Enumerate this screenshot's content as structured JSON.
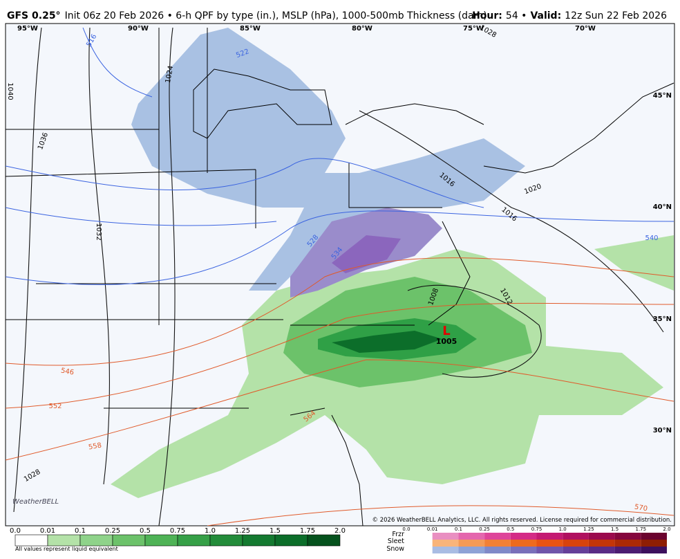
{
  "header": {
    "model": "GFS 0.25°",
    "description": "Init 06z 20 Feb 2026 • 6-h QPF by type (in.), MSLP (hPa), 1000-500mb Thickness (dam)",
    "hour_label": "Hour:",
    "hour": "54 •",
    "valid_label": "Valid:",
    "valid": "12z Sun 22 Feb 2026"
  },
  "map": {
    "longitude_labels": [
      "95°W",
      "90°W",
      "85°W",
      "80°W",
      "75°W",
      "70°W"
    ],
    "latitude_labels": [
      "45°N",
      "40°N",
      "35°N",
      "30°N"
    ],
    "isobar_labels": [
      "1040",
      "1036",
      "1032",
      "1028",
      "1028",
      "1024",
      "1016",
      "1020",
      "1016",
      "1012",
      "1008"
    ],
    "low": {
      "symbol": "L",
      "pressure": "1005"
    },
    "thickness_labels": [
      "516",
      "522",
      "528",
      "534",
      "540",
      "546",
      "552",
      "558",
      "564",
      "570"
    ],
    "logo": "WeatherBELL",
    "copyright": "© 2026 WeatherBELL Analytics, LLC. All rights reserved. License required for commercial distribution."
  },
  "legend": {
    "rain_ticks": [
      "0.0",
      "0.01",
      "0.1",
      "0.25",
      "0.5",
      "0.75",
      "1.0",
      "1.25",
      "1.5",
      "1.75",
      "2.0"
    ],
    "note": "All values represent liquid equivalent",
    "types": [
      "Frzr",
      "Sleet",
      "Snow"
    ],
    "type_ticks": [
      "0.0",
      "0.01",
      "0.1",
      "0.25",
      "0.5",
      "0.75",
      "1.0",
      "1.25",
      "1.5",
      "1.75",
      "2.0"
    ]
  }
}
